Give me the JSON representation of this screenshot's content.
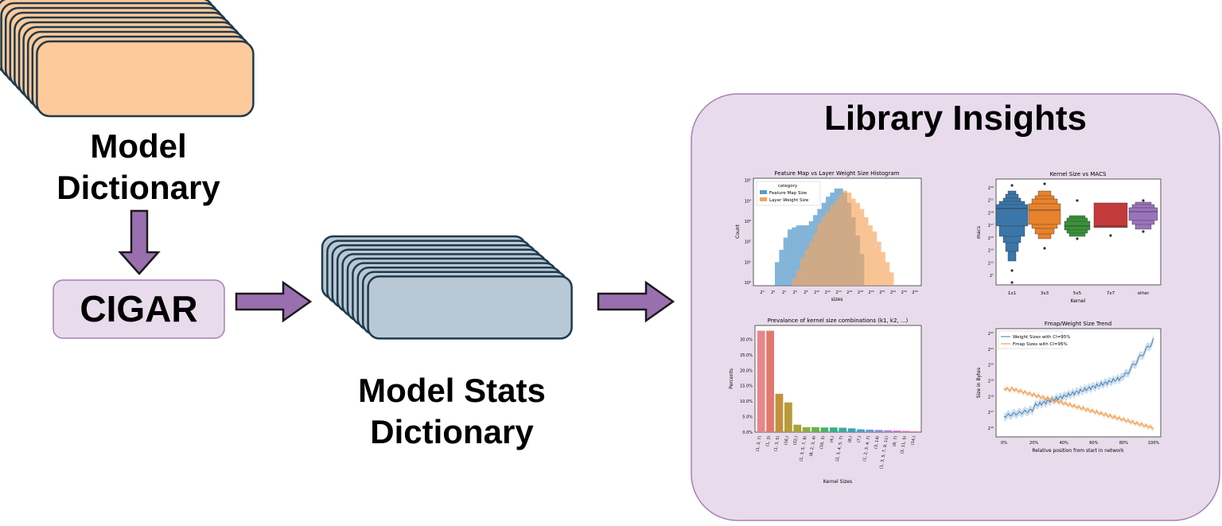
{
  "labels": {
    "model_dictionary": [
      "Model",
      "Dictionary"
    ],
    "cigar": "CIGAR",
    "model_stats_dictionary": [
      "Model Stats",
      "Dictionary"
    ],
    "library_insights": "Library Insights"
  },
  "colors": {
    "dict_fill": "#fdca9b",
    "stats_fill": "#b8c8d4",
    "outline": "#1f3a4d",
    "arrow": "#9a6fb0",
    "panel": "#e8dcec",
    "panel_border": "#a57fb4",
    "cigar_fill": "#e8dcec"
  },
  "charts": {
    "histogram": {
      "title": "Feature Map vs Layer Weight Size Histogram",
      "xlabel": "sizes",
      "ylabel": "Count",
      "yticks": [
        "10⁰",
        "10¹",
        "10²",
        "10³",
        "10⁴",
        "10⁵"
      ],
      "xticks": [
        "2⁰",
        "2²",
        "2⁴",
        "2⁶",
        "2⁸",
        "2¹⁰",
        "2¹²",
        "2¹⁴",
        "2¹⁶",
        "2¹⁸",
        "2²⁰",
        "2²²",
        "2²⁴",
        "2²⁶",
        "2²⁸"
      ],
      "legend_title": "category",
      "legend": [
        "Feature Map Size",
        "Layer Weight Size"
      ],
      "series": [
        {
          "name": "Feature Map Size",
          "color": "#5a9ccc",
          "values": [
            0,
            0,
            0,
            1.0,
            1.6,
            2.2,
            2.6,
            2.7,
            2.8,
            2.8,
            2.8,
            3.0,
            3.3,
            3.6,
            3.9,
            4.2,
            4.4,
            4.6,
            4.6,
            4.4,
            3.9,
            3.2,
            2.3,
            1.4,
            0,
            0,
            0,
            0,
            0,
            0,
            0,
            0,
            0,
            0,
            0,
            0
          ]
        },
        {
          "name": "Layer Weight Size",
          "color": "#f6a45c",
          "values": [
            0,
            0,
            0,
            0,
            0,
            0,
            0,
            0.2,
            0.6,
            1.2,
            1.6,
            2.0,
            2.4,
            2.9,
            3.2,
            3.5,
            3.8,
            4.0,
            4.3,
            4.5,
            4.4,
            4.1,
            3.9,
            3.6,
            3.2,
            2.8,
            2.5,
            2.0,
            1.5,
            1.0,
            0.5,
            0,
            0,
            0,
            0,
            0
          ]
        }
      ]
    },
    "boxen": {
      "title": "Kernel Size vs MACS",
      "xlabel": "Kernel",
      "ylabel": "macs",
      "categories": [
        "1x1",
        "3x3",
        "5x5",
        "7x7",
        "other"
      ],
      "yticks": [
        "2⁷",
        "2¹¹",
        "2¹³",
        "2¹⁵",
        "2¹⁷",
        "2¹⁹",
        "2²¹",
        "2²³"
      ],
      "colors": [
        "#3a76a8",
        "#e8822c",
        "#3a923a",
        "#c33a3a",
        "#9a74bb"
      ]
    },
    "bars": {
      "title": "Prevalance of kernel size combinations (k1, k2, ...)",
      "xlabel": "Kernel Sizes",
      "ylabel": "Percents",
      "yticks": [
        "0.0%",
        "5.0%",
        "10.0%",
        "15.0%",
        "20.0%",
        "25.0%",
        "30.0%"
      ],
      "categories": [
        "(1, 3, 7)",
        "(1, 3)",
        "(1, 3, 5)",
        "(16,)",
        "(32,)",
        "(1, 3, 5, 7, 9)",
        "(8, 2, 3, 4)",
        "(16, 3)",
        "(4,)",
        "(2, 3, 4, 5, 7)",
        "(8,)",
        "(7,)",
        "(1, 2, 3, 4, 7)",
        "(3, 14)",
        "(1, 3, 5, 7, 9, 11)",
        "(8, 7)",
        "(3, 11, 5)",
        "(14,)"
      ],
      "values": [
        32.8,
        32.8,
        12.4,
        9.6,
        2.4,
        1.6,
        1.6,
        1.5,
        1.5,
        1.4,
        1.2,
        0.9,
        0.8,
        0.7,
        0.6,
        0.5,
        0.4,
        0.3
      ],
      "colors": [
        "#e8868a",
        "#e07a6e",
        "#c4903c",
        "#b89a3a",
        "#a8a438",
        "#90ac3c",
        "#6ab04a",
        "#4cb06a",
        "#3cae88",
        "#3aaa9e",
        "#3aa6b0",
        "#4aa2c4",
        "#6a9ad6",
        "#8a8ed8",
        "#ac82d4",
        "#c87ac8",
        "#dc7ab4",
        "#e880a0"
      ]
    },
    "trend": {
      "title": "Fmap/Weight Size Trend",
      "xlabel": "Relative position from start in network",
      "ylabel": "Size in Bytes",
      "xticks": [
        "0%",
        "20%",
        "40%",
        "60%",
        "80%",
        "100%"
      ],
      "yticks": [
        "2¹⁶",
        "2¹⁷",
        "2¹⁸",
        "2¹⁹",
        "2²⁰",
        "2²¹",
        "2²²"
      ],
      "legend": [
        "Weight Sizes with CI=95%",
        "Fmap Sizes with CI=95%"
      ],
      "series_colors": [
        "#3b7bb4",
        "#f08a30"
      ]
    }
  }
}
